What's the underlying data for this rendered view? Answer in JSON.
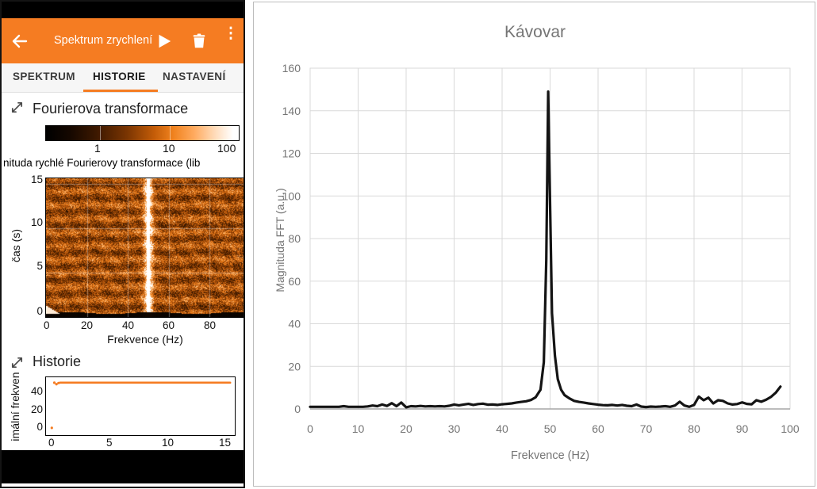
{
  "phone": {
    "app_bar": {
      "title": "Spektrum zrychlení",
      "back_icon": "arrow-left",
      "play_icon": "play",
      "delete_icon": "trash",
      "menu_icon": "kebab-menu",
      "menu_glyph": "⋮",
      "accent_color": "#f57c22"
    },
    "tabs": [
      {
        "label": "SPEKTRUM",
        "active": false
      },
      {
        "label": "HISTORIE",
        "active": true
      },
      {
        "label": "NASTAVENÍ",
        "active": false
      }
    ],
    "fft_section": {
      "title": "Fourierova transformace",
      "expand_icon": "expand-diagonal-arrows",
      "colorbar": {
        "labels": [
          "1",
          "10",
          "100"
        ],
        "scale": "log",
        "colors": [
          "#000000",
          "#7a3502",
          "#f0821e",
          "#ffffff"
        ]
      },
      "caption": "nituda rychlé Fourierovy transformace (lib"
    },
    "history_section": {
      "title": "Historie",
      "expand_icon": "expand-diagonal-arrows"
    },
    "nav_bar": {
      "color": "#000000"
    }
  },
  "chart_data": [
    {
      "type": "line",
      "context": "right-panel-fft-chart",
      "title": "Kávovar",
      "xlabel": "Frekvence (Hz)",
      "ylabel": "Magnituda FFT (a.u.)",
      "xlim": [
        0,
        100
      ],
      "ylim": [
        0,
        160
      ],
      "xticks": [
        0,
        10,
        20,
        30,
        40,
        50,
        60,
        70,
        80,
        90,
        100
      ],
      "yticks": [
        0,
        20,
        40,
        60,
        80,
        100,
        120,
        140,
        160
      ],
      "grid": true,
      "grid_color": "#d9d9d9",
      "axis_color": "#a6a6a6",
      "label_color": "#757575",
      "line_color": "#141414",
      "peak": {
        "x": 49.6,
        "y": 149
      },
      "points": [
        [
          0,
          1
        ],
        [
          1,
          1
        ],
        [
          2,
          1
        ],
        [
          3,
          1
        ],
        [
          4,
          1
        ],
        [
          5,
          1
        ],
        [
          6,
          1
        ],
        [
          7,
          1.3
        ],
        [
          8,
          1
        ],
        [
          9,
          1
        ],
        [
          10,
          1
        ],
        [
          11,
          1
        ],
        [
          12,
          1.2
        ],
        [
          13,
          1.6
        ],
        [
          14,
          1.3
        ],
        [
          15,
          2.1
        ],
        [
          16,
          1.4
        ],
        [
          17,
          2.7
        ],
        [
          18,
          1.3
        ],
        [
          19,
          3
        ],
        [
          20,
          0.8
        ],
        [
          21,
          1.3
        ],
        [
          22,
          1.2
        ],
        [
          23,
          1.4
        ],
        [
          24,
          1.2
        ],
        [
          25,
          1.3
        ],
        [
          26,
          1.2
        ],
        [
          27,
          1.3
        ],
        [
          28,
          1.2
        ],
        [
          29,
          1.5
        ],
        [
          30,
          2.1
        ],
        [
          31,
          1.7
        ],
        [
          32,
          2.1
        ],
        [
          33,
          2.4
        ],
        [
          34,
          1.9
        ],
        [
          35,
          2.3
        ],
        [
          36,
          2.5
        ],
        [
          37,
          2.0
        ],
        [
          38,
          2.1
        ],
        [
          39,
          1.9
        ],
        [
          40,
          2.2
        ],
        [
          41,
          2.4
        ],
        [
          42,
          2.6
        ],
        [
          43,
          3.0
        ],
        [
          44,
          3.3
        ],
        [
          45,
          3.6
        ],
        [
          46,
          4.2
        ],
        [
          47,
          5.5
        ],
        [
          48,
          9
        ],
        [
          48.7,
          22
        ],
        [
          49.2,
          70
        ],
        [
          49.6,
          149
        ],
        [
          50,
          96
        ],
        [
          50.4,
          45
        ],
        [
          51,
          25
        ],
        [
          51.6,
          14
        ],
        [
          52.3,
          9
        ],
        [
          53,
          6.5
        ],
        [
          54,
          5
        ],
        [
          55,
          3.8
        ],
        [
          56,
          3.3
        ],
        [
          57,
          3
        ],
        [
          58,
          2.6
        ],
        [
          59,
          2.3
        ],
        [
          60,
          2
        ],
        [
          61,
          1.8
        ],
        [
          62,
          1.7
        ],
        [
          63,
          1.9
        ],
        [
          64,
          1.6
        ],
        [
          65,
          1.9
        ],
        [
          66,
          1.5
        ],
        [
          67,
          1.3
        ],
        [
          68,
          2.1
        ],
        [
          69,
          1.1
        ],
        [
          70,
          0.9
        ],
        [
          71,
          1.1
        ],
        [
          72,
          1.0
        ],
        [
          73,
          1.1
        ],
        [
          74,
          1.3
        ],
        [
          75,
          1.0
        ],
        [
          76,
          1.6
        ],
        [
          77,
          3.4
        ],
        [
          78,
          1.6
        ],
        [
          79,
          1.0
        ],
        [
          80,
          1.9
        ],
        [
          81,
          5.8
        ],
        [
          82,
          4.1
        ],
        [
          83,
          5.3
        ],
        [
          84,
          2.6
        ],
        [
          85,
          4.1
        ],
        [
          86,
          3.8
        ],
        [
          87,
          2.6
        ],
        [
          88,
          2.1
        ],
        [
          89,
          2.3
        ],
        [
          90,
          3.1
        ],
        [
          91,
          2.4
        ],
        [
          92,
          2.2
        ],
        [
          93,
          4.1
        ],
        [
          94,
          3.4
        ],
        [
          95,
          4.3
        ],
        [
          96,
          5.6
        ],
        [
          97,
          7.6
        ],
        [
          98,
          10.5
        ]
      ]
    },
    {
      "type": "heatmap",
      "context": "phone-spectrogram",
      "xlabel": "Frekvence (Hz)",
      "ylabel": "čas (s)",
      "xlim": [
        0,
        97
      ],
      "ylim": [
        0,
        15.6
      ],
      "xticks": [
        0,
        20,
        40,
        60,
        80
      ],
      "yticks": [
        0,
        5,
        10,
        15
      ],
      "peak_freq_hz": 50,
      "appearance": "log-scaled orange colormap, bright white vertical band at 50 Hz, irregular dark horizontal stripes, black band near t=0 with small white lobe at low frequency"
    },
    {
      "type": "scatter",
      "context": "phone-history",
      "ylabel_truncated": "imální frekven",
      "xlim": [
        -0.4,
        15.9
      ],
      "ylim": [
        -8,
        56
      ],
      "xticks": [
        0,
        5,
        10,
        15
      ],
      "yticks": [
        0,
        20,
        40
      ],
      "line_y": 50,
      "line_x": [
        0.8,
        15.5
      ],
      "dots": [
        [
          0.1,
          0
        ],
        [
          0.32,
          50
        ],
        [
          0.5,
          48.3
        ],
        [
          0.68,
          49.6
        ]
      ],
      "color": "#f57c22"
    }
  ]
}
